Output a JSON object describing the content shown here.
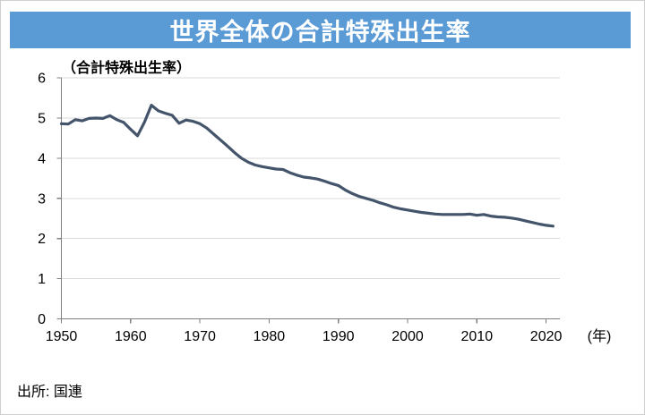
{
  "colors": {
    "banner": "#5b9bd5",
    "line": "#44546a",
    "grid": "#d9d9d9",
    "axis": "#7f7f7f"
  },
  "chart_data": {
    "type": "line",
    "title": "世界全体の合計特殊出生率",
    "ylabel": "（合計特殊出生率）",
    "xlabel": "(年)",
    "source": "出所: 国連",
    "ylim": [
      0,
      6
    ],
    "yticks": [
      0,
      1,
      2,
      3,
      4,
      5,
      6
    ],
    "xticks": [
      1950,
      1960,
      1970,
      1980,
      1990,
      2000,
      2010,
      2020
    ],
    "grid": "horizontal",
    "legend": "none",
    "line_color": "#44546a",
    "x": [
      1950,
      1951,
      1952,
      1953,
      1954,
      1955,
      1956,
      1957,
      1958,
      1959,
      1960,
      1961,
      1962,
      1963,
      1964,
      1965,
      1966,
      1967,
      1968,
      1969,
      1970,
      1971,
      1972,
      1973,
      1974,
      1975,
      1976,
      1977,
      1978,
      1979,
      1980,
      1981,
      1982,
      1983,
      1984,
      1985,
      1986,
      1987,
      1988,
      1989,
      1990,
      1991,
      1992,
      1993,
      1994,
      1995,
      1996,
      1997,
      1998,
      1999,
      2000,
      2001,
      2002,
      2003,
      2004,
      2005,
      2006,
      2007,
      2008,
      2009,
      2010,
      2011,
      2012,
      2013,
      2014,
      2015,
      2016,
      2017,
      2018,
      2019,
      2020,
      2021
    ],
    "values": [
      4.86,
      4.85,
      4.96,
      4.93,
      4.99,
      5.0,
      4.99,
      5.06,
      4.96,
      4.89,
      4.72,
      4.56,
      4.9,
      5.32,
      5.18,
      5.12,
      5.07,
      4.87,
      4.95,
      4.92,
      4.86,
      4.75,
      4.6,
      4.45,
      4.3,
      4.14,
      4.0,
      3.9,
      3.83,
      3.79,
      3.76,
      3.73,
      3.72,
      3.64,
      3.58,
      3.53,
      3.51,
      3.48,
      3.43,
      3.37,
      3.32,
      3.21,
      3.12,
      3.05,
      3.0,
      2.95,
      2.89,
      2.84,
      2.78,
      2.74,
      2.71,
      2.68,
      2.65,
      2.63,
      2.61,
      2.6,
      2.6,
      2.6,
      2.6,
      2.61,
      2.58,
      2.6,
      2.56,
      2.54,
      2.53,
      2.51,
      2.48,
      2.44,
      2.4,
      2.36,
      2.33,
      2.31
    ]
  }
}
